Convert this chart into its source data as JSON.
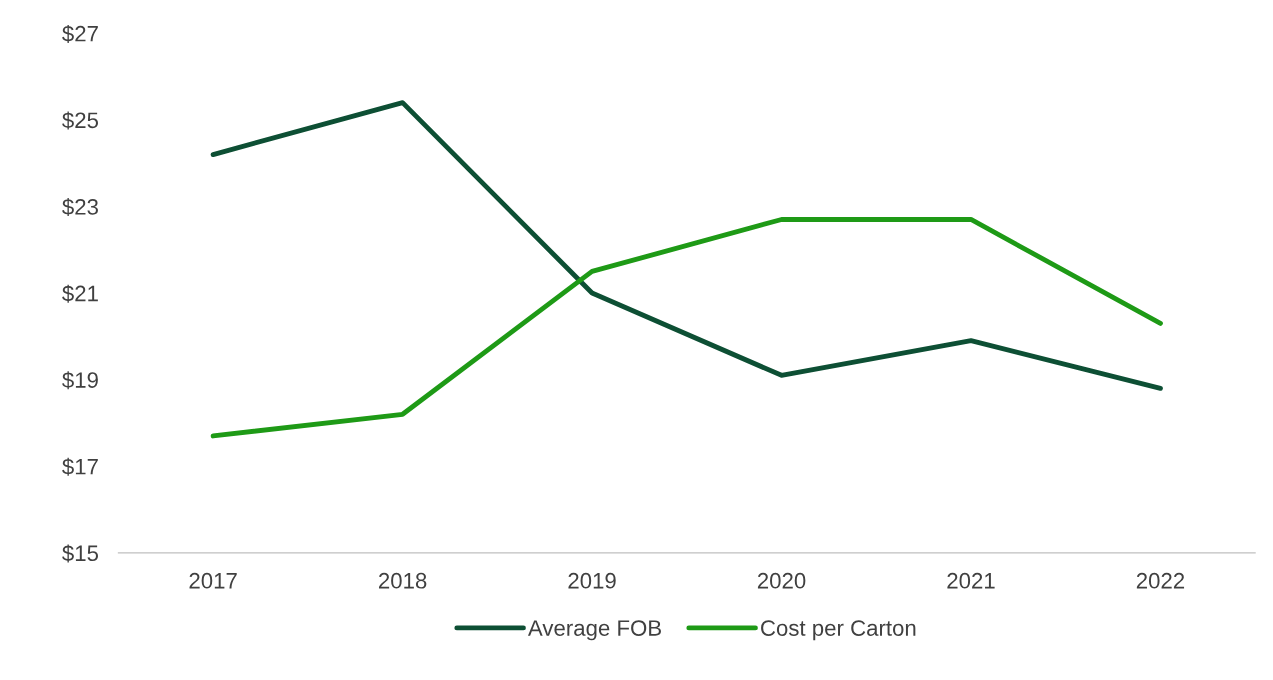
{
  "chart_data": {
    "type": "line",
    "categories": [
      "2017",
      "2018",
      "2019",
      "2020",
      "2021",
      "2022"
    ],
    "series": [
      {
        "name": "Average FOB",
        "color": "#0d4f34",
        "values": [
          24.2,
          25.4,
          21.0,
          19.1,
          19.9,
          18.8
        ]
      },
      {
        "name": "Cost per Carton",
        "color": "#1e9a16",
        "values": [
          17.7,
          18.2,
          21.5,
          22.7,
          22.7,
          20.3
        ]
      }
    ],
    "ylim": [
      15,
      27
    ],
    "yticks": [
      {
        "value": 15,
        "label": "$15"
      },
      {
        "value": 17,
        "label": "$17"
      },
      {
        "value": 19,
        "label": "$19"
      },
      {
        "value": 21,
        "label": "$21"
      },
      {
        "value": 23,
        "label": "$23"
      },
      {
        "value": 25,
        "label": "$25"
      },
      {
        "value": 27,
        "label": "$27"
      }
    ],
    "grid": false,
    "legend": "bottom",
    "marker": "none",
    "line_style": "solid"
  }
}
